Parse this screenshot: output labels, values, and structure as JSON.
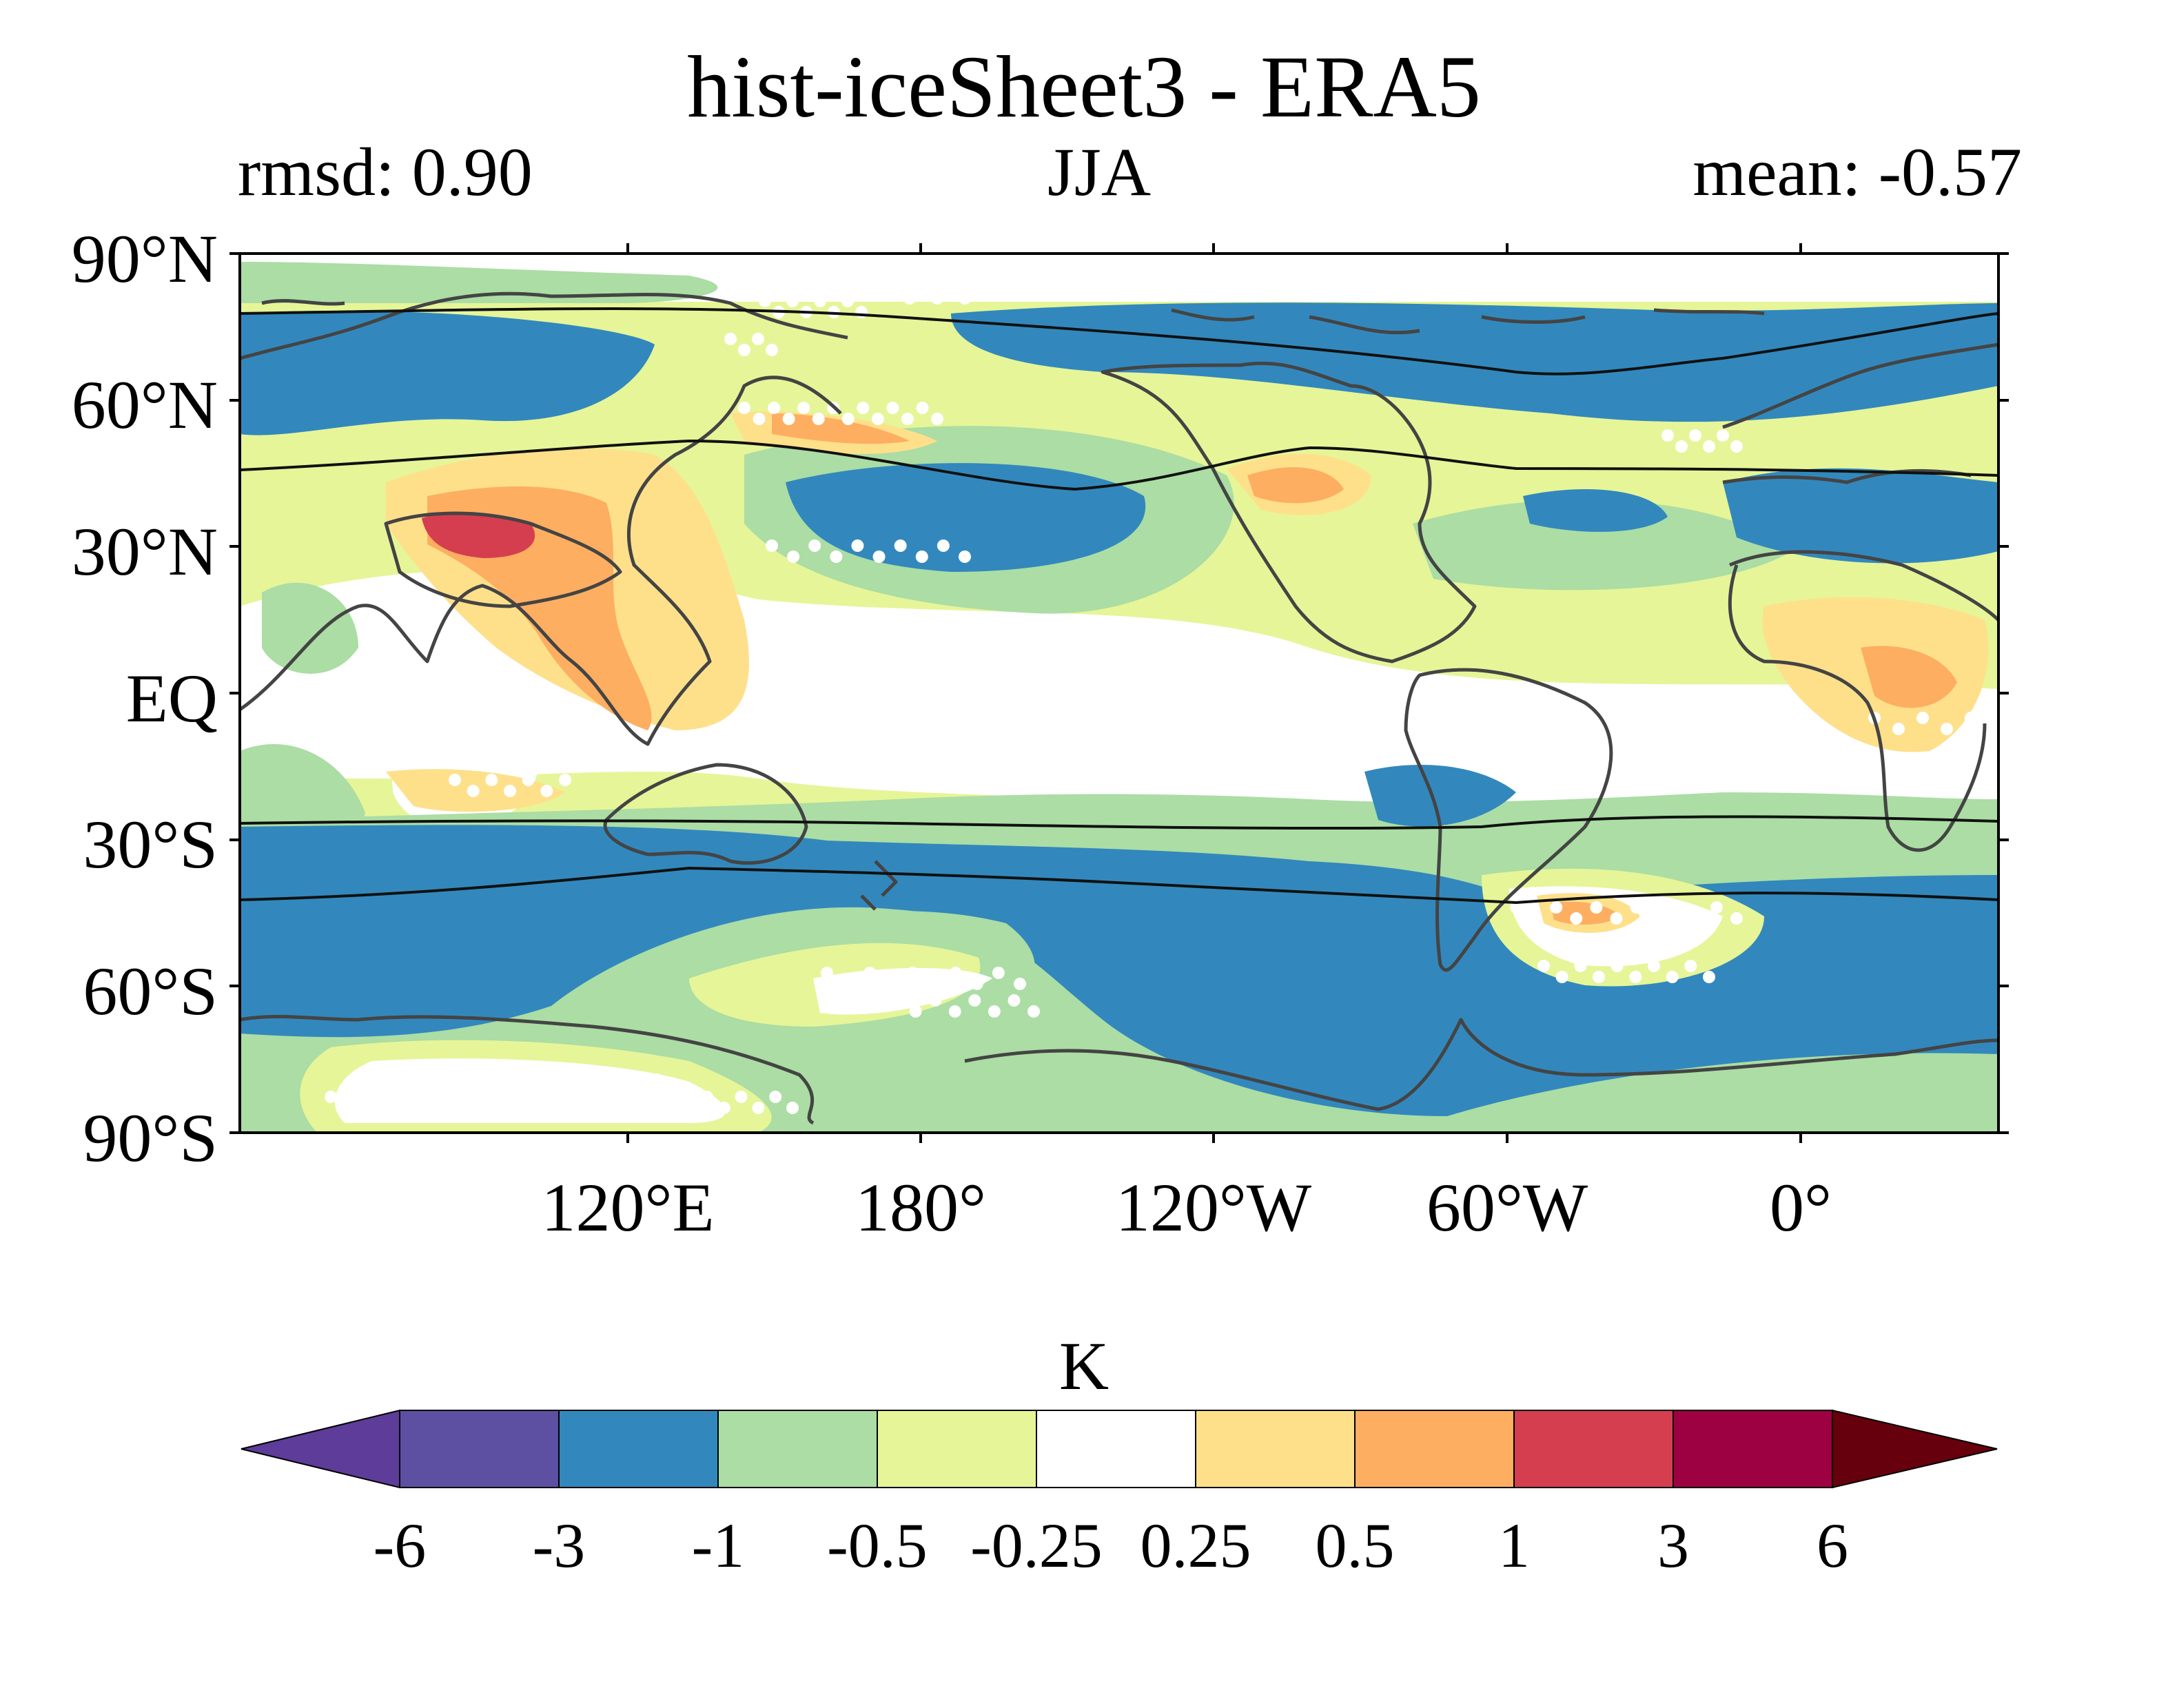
{
  "title": "hist-iceSheet3 - ERA5",
  "stats": {
    "rmsd": "rmsd: 0.90",
    "season": "JJA",
    "mean": "mean: -0.57"
  },
  "map": {
    "projection": "equirectangular",
    "central_longitude": "150°W",
    "lat_labels": [
      "90°N",
      "60°N",
      "30°N",
      "EQ",
      "30°S",
      "60°S",
      "90°S"
    ],
    "lon_labels": [
      "120°E",
      "180°",
      "120°W",
      "60°W",
      "0°"
    ],
    "stippling": "white dots mark non-significant regions"
  },
  "colorbar": {
    "unit": "K",
    "tick_labels": [
      "-6",
      "-3",
      "-1",
      "-0.5",
      "-0.25",
      "0.25",
      "0.5",
      "1",
      "3",
      "6"
    ],
    "colors": [
      "#5e3c99",
      "#5d50a3",
      "#3288bd",
      "#abdda4",
      "#e6f598",
      "#ffffff",
      "#fee08b",
      "#fdae61",
      "#d53e4f",
      "#9e0142",
      "#67000d"
    ],
    "extend": "both"
  }
}
